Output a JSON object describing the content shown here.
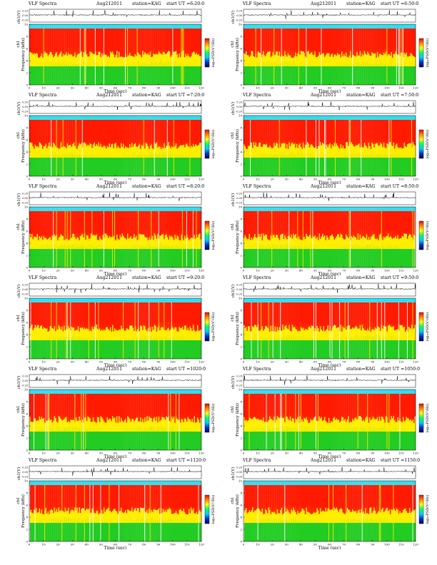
{
  "header": {
    "title": "VLF Spectra",
    "date": "Aug212011",
    "station": "station=KAG",
    "start_prefix": "start  UT ="
  },
  "axis_labels": {
    "ch1_top": "ch1(V)",
    "ch1_side": "ch1",
    "freq": "Frequency (kHz)",
    "time": "Time (sec)",
    "colorbar": "log₁₀PSD(V²/Hz)"
  },
  "panels": [
    {
      "start": "6:20:0"
    },
    {
      "start": "6:50:0"
    },
    {
      "start": "7:20:0"
    },
    {
      "start": "7:50:0"
    },
    {
      "start": "8:20:0"
    },
    {
      "start": "8:50:0"
    },
    {
      "start": "9:20:0"
    },
    {
      "start": "9:50:0"
    },
    {
      "start": "1020:0"
    },
    {
      "start": "1050:0"
    },
    {
      "start": "1120:0"
    },
    {
      "start": "1150:0"
    }
  ],
  "chart_data": {
    "type": "heatmap",
    "x_ticks": [
      0,
      10,
      20,
      30,
      40,
      50,
      60,
      70,
      80,
      90,
      100,
      110,
      120
    ],
    "y_ticks": [
      0,
      2,
      4,
      6,
      8,
      10
    ],
    "ts_ticks": [
      "0.20",
      "0.00",
      "-0.20"
    ],
    "xlim": [
      0,
      120
    ],
    "ylim": [
      0,
      10
    ],
    "colors": {
      "high": "#ff1a00",
      "mid": "#ffee00",
      "low": "#22cc22",
      "cyan": "#33ddee",
      "colorbar": [
        "#ff0000",
        "#ff8800",
        "#ffff00",
        "#00ff66",
        "#00ccff",
        "#0033cc",
        "#000066"
      ]
    }
  }
}
